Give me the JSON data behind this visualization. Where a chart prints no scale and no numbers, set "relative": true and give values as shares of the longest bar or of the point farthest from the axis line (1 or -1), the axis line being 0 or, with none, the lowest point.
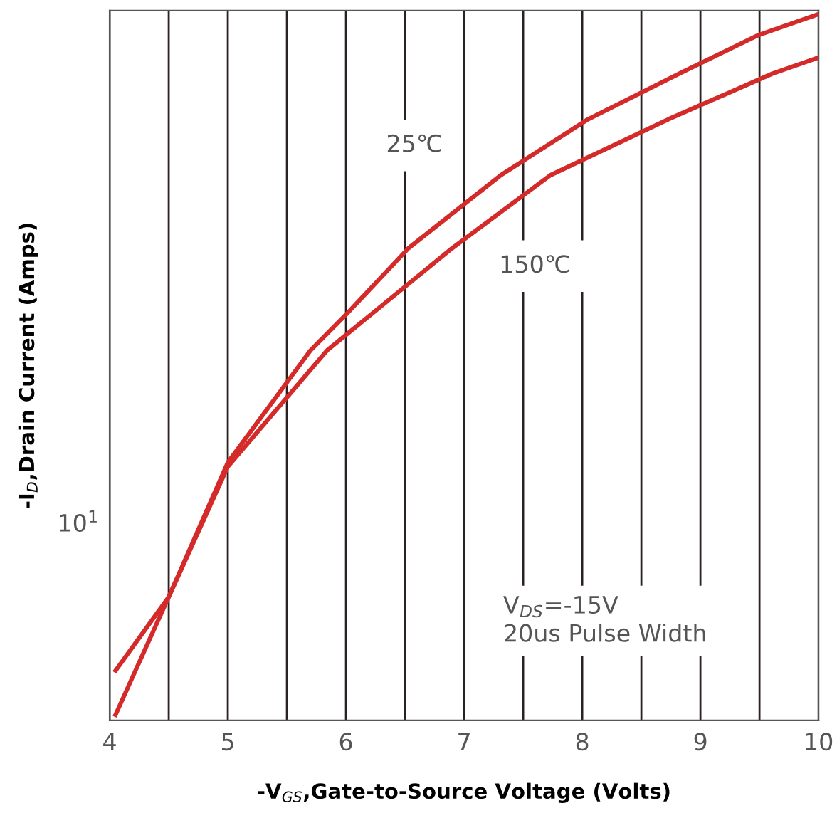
{
  "chart_data": {
    "type": "line",
    "xlabel": "-V$_{GS}$,Gate-to-Source Voltage (Volts)",
    "ylabel": "-I$_{D}$,Drain Current (Amps)",
    "relative": true,
    "grid": "x",
    "legend": false,
    "marker": "none",
    "line_style": "solid",
    "tick_labels": "x",
    "xlim": [
      4,
      10
    ],
    "xticks": [
      4,
      {
        "value": 4.5,
        "label": null
      },
      5,
      {
        "value": 5.5,
        "label": null
      },
      6,
      {
        "value": 6.5,
        "label": null
      },
      7,
      {
        "value": 7.5,
        "label": null
      },
      8,
      {
        "value": 8.5,
        "label": null
      },
      9,
      {
        "value": 9.5,
        "label": null
      },
      10
    ],
    "series": [
      {
        "name": "25℃",
        "color": "#d42a2a",
        "x": [
          4.05,
          4.5,
          5,
          5.7,
          6,
          6.53,
          7.31,
          8.05,
          8.82,
          9.49,
          10
        ],
        "values": [
          0,
          0.168,
          0.36,
          0.52,
          0.571,
          0.666,
          0.77,
          0.85,
          0.915,
          0.97,
          1
        ]
      },
      {
        "name": "150℃",
        "color": "#d42a2a",
        "x": [
          4.05,
          4.5,
          5,
          5.84,
          6.9,
          7.73,
          8.73,
          9.61,
          10
        ],
        "values": [
          0.063,
          0.168,
          0.354,
          0.52,
          0.666,
          0.77,
          0.85,
          0.915,
          0.938
        ]
      }
    ],
    "annotations": [
      "10$^{1}$",
      "V$_{DS}$=-15V\n20us Pulse Width"
    ]
  }
}
